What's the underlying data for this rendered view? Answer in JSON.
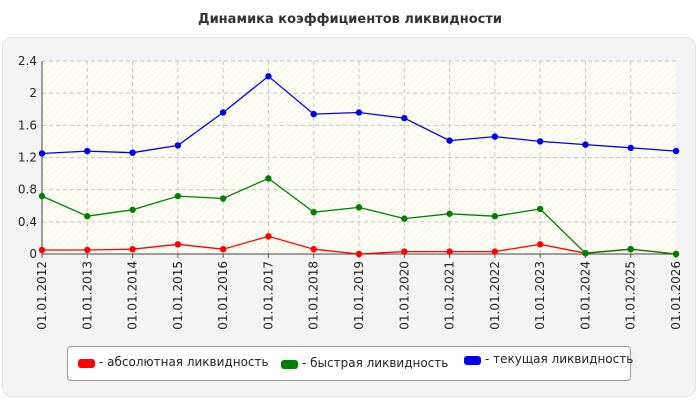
{
  "chart_data": {
    "type": "line",
    "title": "Динамика коэффициентов ликвидности",
    "categories": [
      "01.01.2012",
      "01.01.2013",
      "01.01.2014",
      "01.01.2015",
      "01.01.2016",
      "01.01.2017",
      "01.01.2018",
      "01.01.2019",
      "01.01.2020",
      "01.01.2021",
      "01.01.2022",
      "01.01.2023",
      "01.01.2024",
      "01.01.2025",
      "01.01.2026"
    ],
    "series": [
      {
        "name": "- абсолютная ликвидность",
        "color": "#ff0000",
        "values": [
          0.05,
          0.05,
          0.06,
          0.12,
          0.06,
          0.22,
          0.06,
          0.0,
          0.03,
          0.03,
          0.03,
          0.12,
          0.01,
          0.06,
          0.0
        ]
      },
      {
        "name": "- быстрая ликвидность",
        "color": "#008000",
        "values": [
          0.72,
          0.47,
          0.55,
          0.72,
          0.69,
          0.94,
          0.52,
          0.58,
          0.44,
          0.5,
          0.47,
          0.56,
          0.01,
          0.06,
          0.0
        ]
      },
      {
        "name": "- текущая ликвидность",
        "color": "#0000ee",
        "values": [
          1.25,
          1.28,
          1.26,
          1.35,
          1.76,
          2.21,
          1.74,
          1.76,
          1.69,
          1.41,
          1.46,
          1.4,
          1.36,
          1.32,
          1.28
        ]
      }
    ],
    "ylim": [
      0,
      2.4
    ],
    "yticks": [
      "0",
      "0.4",
      "0.8",
      "1.2",
      "1.6",
      "2",
      "2.4"
    ],
    "grid": true,
    "legend_position": "bottom"
  }
}
